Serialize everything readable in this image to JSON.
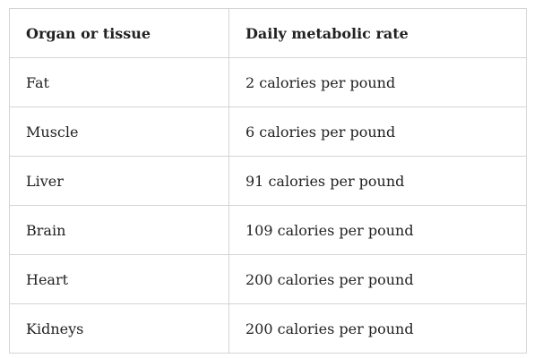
{
  "table": {
    "headers": [
      "Organ or tissue",
      "Daily metabolic rate"
    ],
    "rows": [
      [
        "Fat",
        "2 calories per pound"
      ],
      [
        "Muscle",
        "6 calories per pound"
      ],
      [
        "Liver",
        "91 calories per pound"
      ],
      [
        "Brain",
        "109 calories per pound"
      ],
      [
        "Heart",
        "200 calories per pound"
      ],
      [
        "Kidneys",
        "200 calories per pound"
      ]
    ]
  }
}
